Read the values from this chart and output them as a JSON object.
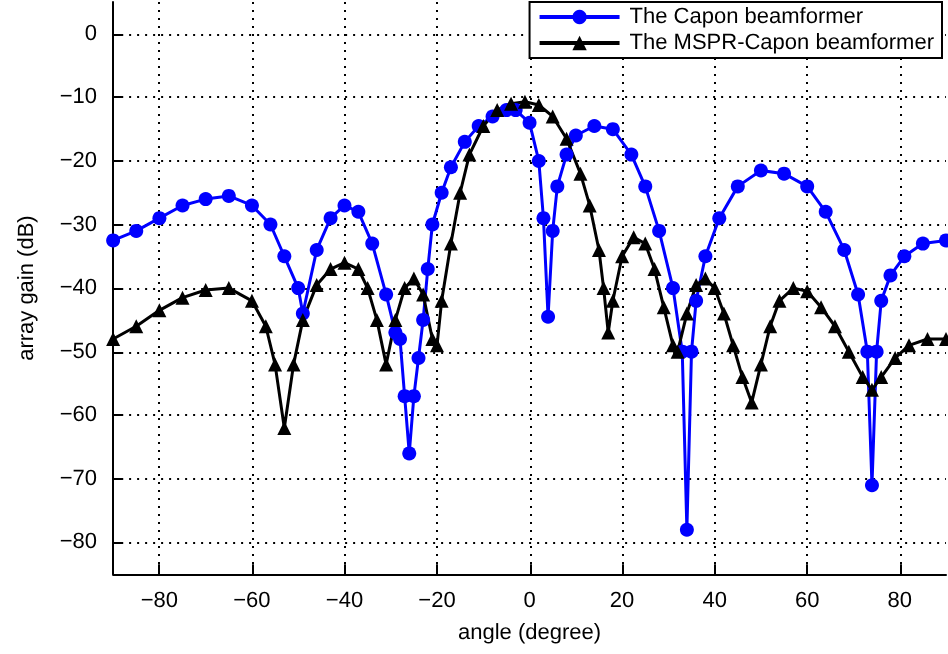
{
  "chart_data": {
    "type": "line",
    "xlabel": "angle (degree)",
    "ylabel": "array gain (dB)",
    "xlim": [
      -90,
      90
    ],
    "ylim": [
      -85,
      5
    ],
    "xticks": [
      -80,
      -60,
      -40,
      -20,
      0,
      20,
      40,
      60,
      80
    ],
    "yticks": [
      -80,
      -70,
      -60,
      -50,
      -40,
      -30,
      -20,
      -10,
      0
    ],
    "grid": true,
    "legend": "top right",
    "line_style": "solid",
    "series": [
      {
        "name": "The Capon beamformer",
        "color": "#0000ff",
        "marker": "circle",
        "x": [
          -90,
          -85,
          -80,
          -75,
          -70,
          -65,
          -60,
          -56,
          -53,
          -50,
          -49,
          -46,
          -43,
          -40,
          -37,
          -34,
          -31,
          -29,
          -28,
          -27,
          -26,
          -25,
          -24,
          -23,
          -22,
          -21,
          -19,
          -17,
          -14,
          -11,
          -8,
          -5,
          -3,
          0,
          2,
          3,
          4,
          5,
          6,
          8,
          10,
          14,
          18,
          22,
          25,
          28,
          31,
          33,
          34,
          35,
          36,
          38,
          41,
          45,
          50,
          55,
          60,
          64,
          68,
          71,
          73,
          74,
          75,
          76,
          78,
          81,
          85,
          90
        ],
        "values": [
          -32.5,
          -31,
          -29,
          -27,
          -26,
          -25.5,
          -27,
          -30,
          -35,
          -40,
          -44,
          -34,
          -29,
          -27,
          -28,
          -33,
          -41,
          -47,
          -48,
          -57,
          -66,
          -57,
          -51,
          -45,
          -37,
          -30,
          -25,
          -21,
          -17,
          -14.5,
          -13,
          -12,
          -12,
          -14,
          -20,
          -29,
          -44.5,
          -31,
          -24,
          -19,
          -16,
          -14.5,
          -15,
          -19,
          -24,
          -31,
          -40,
          -50,
          -78,
          -50,
          -42,
          -35,
          -29,
          -24,
          -21.5,
          -22,
          -24,
          -28,
          -34,
          -41,
          -50,
          -71,
          -50,
          -42,
          -38,
          -35,
          -33,
          -32.5
        ]
      },
      {
        "name": "The MSPR-Capon beamformer",
        "color": "#000000",
        "marker": "triangle",
        "x": [
          -90,
          -85,
          -80,
          -75,
          -70,
          -65,
          -60,
          -57,
          -55,
          -53,
          -51,
          -49,
          -46,
          -43,
          -40,
          -37,
          -35,
          -33,
          -31,
          -29,
          -27,
          -25,
          -23,
          -21,
          -20,
          -19,
          -17,
          -15,
          -13,
          -10,
          -7,
          -4,
          -1,
          2,
          5,
          8,
          11,
          13,
          15,
          16,
          17,
          18,
          20,
          22.5,
          25,
          27,
          29,
          31,
          32,
          34,
          36,
          38,
          40,
          42,
          44,
          46,
          48,
          50,
          52,
          54,
          57,
          60,
          63,
          66,
          69,
          72,
          74,
          76,
          79,
          82,
          86,
          90
        ],
        "values": [
          -48,
          -46,
          -43.5,
          -41.5,
          -40.3,
          -40,
          -42,
          -46,
          -52,
          -62,
          -52,
          -45,
          -39.5,
          -37,
          -36,
          -37,
          -40,
          -45,
          -52,
          -45,
          -40,
          -38.5,
          -41,
          -48,
          -49,
          -42,
          -33,
          -25,
          -19,
          -14.5,
          -12,
          -11,
          -10.7,
          -11.2,
          -13,
          -16.5,
          -22,
          -27,
          -34,
          -40,
          -47,
          -42,
          -35,
          -32,
          -33,
          -37,
          -43,
          -49,
          -50,
          -44,
          -39.5,
          -38.5,
          -40,
          -44,
          -49,
          -54,
          -58,
          -52,
          -46,
          -42,
          -40,
          -40.5,
          -43,
          -46,
          -50,
          -54,
          -56,
          -54,
          -51,
          -49,
          -48,
          -48
        ]
      }
    ]
  }
}
